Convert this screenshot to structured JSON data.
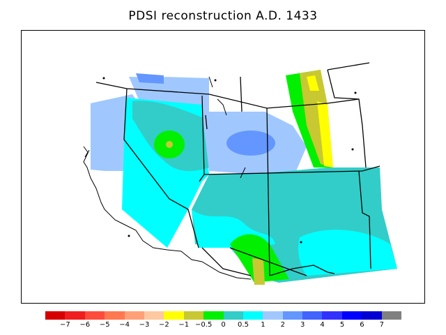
{
  "title": "PDSI reconstruction A.D. 1433",
  "legend": {
    "colors": [
      "#d60000",
      "#f01e1e",
      "#ff4b3c",
      "#ff7850",
      "#ffa078",
      "#ffc8a0",
      "#ffff00",
      "#c8c832",
      "#00f000",
      "#32cdc8",
      "#00ffff",
      "#a0c8ff",
      "#6496ff",
      "#4164ff",
      "#3232ff",
      "#0000ff",
      "#0000d2",
      "#808080"
    ],
    "labels": [
      "−7",
      "−6",
      "−5",
      "−4",
      "−3",
      "−2",
      "−1",
      "−0.5",
      "0",
      "0.5",
      "1",
      "2",
      "3",
      "4",
      "5",
      "6",
      "7"
    ]
  }
}
